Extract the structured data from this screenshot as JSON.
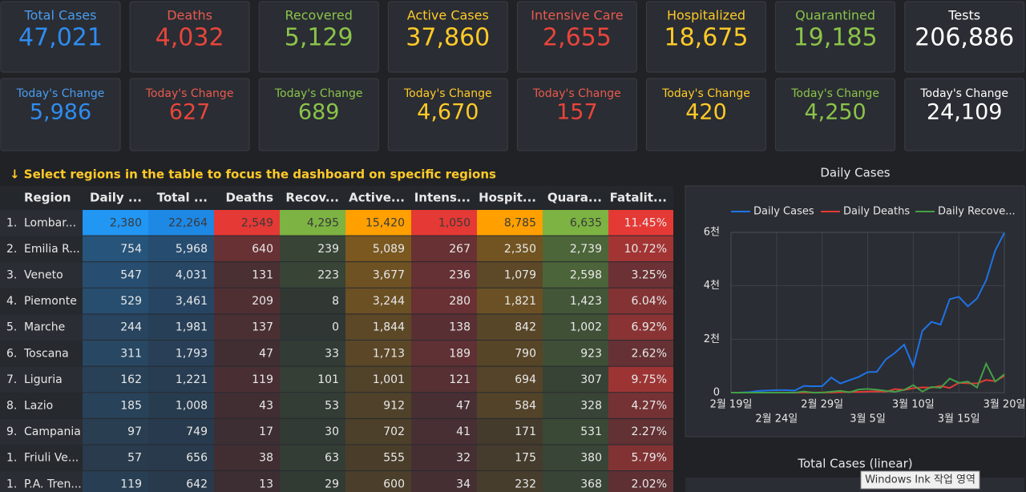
{
  "cards": [
    {
      "label": "Total Cases",
      "value": "47,021",
      "change_label": "Today's Change",
      "change_value": "5,986"
    },
    {
      "label": "Deaths",
      "value": "4,032",
      "change_label": "Today's Change",
      "change_value": "627"
    },
    {
      "label": "Recovered",
      "value": "5,129",
      "change_label": "Today's Change",
      "change_value": "689"
    },
    {
      "label": "Active Cases",
      "value": "37,860",
      "change_label": "Today's Change",
      "change_value": "4,670"
    },
    {
      "label": "Intensive Care",
      "value": "2,655",
      "change_label": "Today's Change",
      "change_value": "157"
    },
    {
      "label": "Hospitalized",
      "value": "18,675",
      "change_label": "Today's Change",
      "change_value": "420"
    },
    {
      "label": "Quarantined",
      "value": "19,185",
      "change_label": "Today's Change",
      "change_value": "4,250"
    },
    {
      "label": "Tests",
      "value": "206,886",
      "change_label": "Today's Change",
      "change_value": "24,109"
    }
  ],
  "notice": "↓ Select regions in the table to focus the dashboard on specific regions",
  "table": {
    "columns": [
      "Region",
      "Daily ...",
      "Total ...",
      "Deaths",
      "Recov...",
      "Active...",
      "Intens...",
      "Hospit...",
      "Quara...",
      "Fatalit..."
    ],
    "rows": [
      [
        "1.",
        "Lombar...",
        "2,380",
        "22,264",
        "2,549",
        "4,295",
        "15,420",
        "1,050",
        "8,785",
        "6,635",
        "11.45%"
      ],
      [
        "2.",
        "Emilia R...",
        "754",
        "5,968",
        "640",
        "239",
        "5,089",
        "267",
        "2,350",
        "2,739",
        "10.72%"
      ],
      [
        "3.",
        "Veneto",
        "547",
        "4,031",
        "131",
        "223",
        "3,677",
        "236",
        "1,079",
        "2,598",
        "3.25%"
      ],
      [
        "4.",
        "Piemonte",
        "529",
        "3,461",
        "209",
        "8",
        "3,244",
        "280",
        "1,821",
        "1,423",
        "6.04%"
      ],
      [
        "5.",
        "Marche",
        "244",
        "1,981",
        "137",
        "0",
        "1,844",
        "138",
        "842",
        "1,002",
        "6.92%"
      ],
      [
        "6.",
        "Toscana",
        "311",
        "1,793",
        "47",
        "33",
        "1,713",
        "189",
        "790",
        "923",
        "2.62%"
      ],
      [
        "7.",
        "Liguria",
        "162",
        "1,221",
        "119",
        "101",
        "1,001",
        "121",
        "694",
        "307",
        "9.75%"
      ],
      [
        "8.",
        "Lazio",
        "185",
        "1,008",
        "43",
        "53",
        "912",
        "47",
        "584",
        "328",
        "4.27%"
      ],
      [
        "9.",
        "Campania",
        "97",
        "749",
        "17",
        "30",
        "702",
        "41",
        "171",
        "531",
        "2.27%"
      ],
      [
        "1.",
        "Friuli Ve...",
        "57",
        "656",
        "38",
        "63",
        "555",
        "32",
        "175",
        "380",
        "5.79%"
      ],
      [
        "1.",
        "P.A. Tren...",
        "119",
        "642",
        "13",
        "29",
        "600",
        "34",
        "232",
        "368",
        "2.02%"
      ]
    ]
  },
  "chart_data": {
    "type": "line",
    "title": "Daily Cases",
    "categories": [
      "2월 19일",
      null,
      null,
      null,
      null,
      "2월 24일",
      null,
      null,
      null,
      null,
      "2월 29일",
      null,
      null,
      null,
      null,
      "3월 5일",
      null,
      null,
      null,
      null,
      "3월 10일",
      null,
      null,
      null,
      null,
      "3월 15일",
      null,
      null,
      null,
      null,
      "3월 20일"
    ],
    "series": [
      {
        "name": "Daily Cases",
        "color": "#1e73e8",
        "values": [
          0,
          3,
          17,
          62,
          77,
          93,
          93,
          78,
          250,
          238,
          240,
          566,
          342,
          466,
          587,
          769,
          778,
          1247,
          1492,
          1797,
          977,
          2313,
          2651,
          2547,
          3497,
          3590,
          3233,
          3526,
          4207,
          5322,
          5986
        ]
      },
      {
        "name": "Daily Deaths",
        "color": "#e53935",
        "values": [
          0,
          0,
          1,
          1,
          1,
          4,
          4,
          1,
          5,
          4,
          8,
          5,
          18,
          27,
          28,
          41,
          49,
          36,
          133,
          97,
          168,
          196,
          189,
          250,
          175,
          368,
          349,
          345,
          475,
          427,
          627
        ]
      },
      {
        "name": "Daily Recove...",
        "color": "#43a047",
        "values": [
          0,
          0,
          0,
          0,
          0,
          0,
          1,
          2,
          42,
          1,
          4,
          33,
          66,
          11,
          116,
          138,
          109,
          66,
          33,
          102,
          280,
          41,
          213,
          181,
          527,
          369,
          414,
          192,
          1084,
          415,
          689
        ]
      }
    ],
    "ylim": [
      0,
      6000
    ],
    "yticks": [
      0,
      {
        "value": 2000,
        "label": "2천"
      },
      {
        "value": 4000,
        "label": "4천"
      },
      {
        "value": 6000,
        "label": "6천"
      }
    ],
    "grid": true,
    "legend": "top"
  },
  "next_panel_title": "Total Cases (linear)",
  "overlay": "Windows Ink 작업 영역"
}
